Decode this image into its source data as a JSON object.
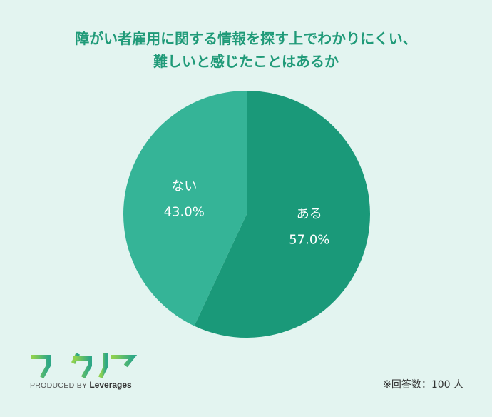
{
  "title": {
    "line1": "障がい者雇用に関する情報を探す上でわかりにくい、",
    "line2": "難しいと感じたことはあるか"
  },
  "chart_data": {
    "type": "pie",
    "slices": [
      {
        "label": "ある",
        "value": 57.0,
        "value_label": "57.0%",
        "color": "#1a9979"
      },
      {
        "label": "ない",
        "value": 43.0,
        "value_label": "43.0%",
        "color": "#35b497"
      }
    ],
    "start_angle_deg": 0,
    "direction": "clockwise"
  },
  "logo": {
    "produced_by": "PRODUCED BY",
    "brand": "Leverages",
    "mark_text": "ワークリア"
  },
  "note": "※回答数：100 人",
  "colors": {
    "background": "#e3f4f0",
    "title": "#1f9a78"
  }
}
